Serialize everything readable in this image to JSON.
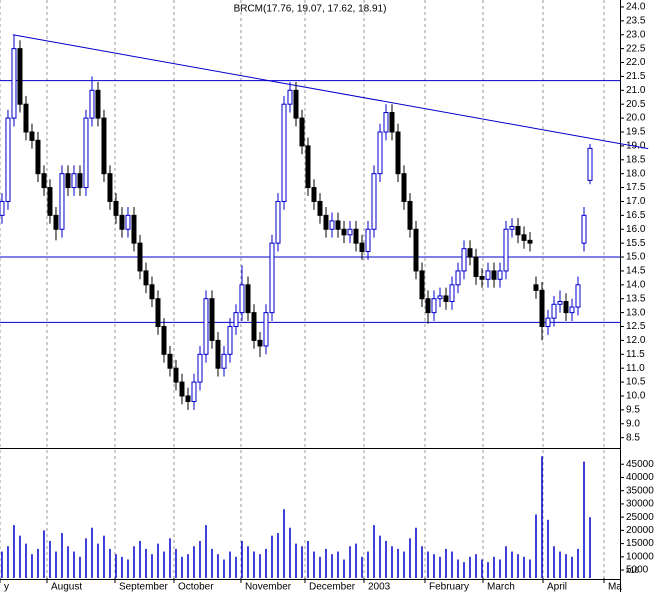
{
  "chart_data": {
    "type": "candlestick",
    "title": "BRCM(17.76, 19.07, 17.62, 18.91)",
    "open": [
      16.5,
      17,
      20,
      22.5,
      20.5,
      19.5,
      19.2,
      18,
      17.5,
      16.5,
      16,
      18,
      17.5,
      18,
      17.5,
      20,
      21,
      20,
      18,
      17,
      16.5,
      16,
      16.5,
      15.5,
      14.5,
      14,
      13.5,
      12.5,
      11.5,
      11,
      10.5,
      10,
      9.8,
      10.5,
      11.5,
      13.5,
      12,
      11,
      11.5,
      12.5,
      13,
      14,
      13,
      12,
      11.8,
      13,
      15.5,
      17,
      20.5,
      21,
      20,
      19,
      17.5,
      17,
      16.5,
      16,
      16.3,
      16,
      15.8,
      16,
      15.5,
      15.2,
      16,
      18,
      19.5,
      20.2,
      19.5,
      18,
      17,
      16,
      14.5,
      13.5,
      13,
      13.5,
      13.6,
      13.4,
      14,
      14.5,
      15.3,
      15,
      14.3,
      14.2,
      14.5,
      14.2,
      14.5,
      16,
      16.1,
      15.8,
      15.6,
      14,
      13.8,
      12.5,
      12.8,
      13.3,
      13.4,
      13,
      13.2,
      15.5,
      17.76
    ],
    "high": [
      17.3,
      20.3,
      23,
      22.8,
      20.8,
      19.8,
      19.5,
      18.3,
      17.8,
      16.8,
      18.3,
      18.3,
      18.3,
      18.3,
      20.3,
      21.5,
      21.3,
      20.3,
      18.3,
      17.3,
      16.8,
      16.8,
      16.8,
      15.8,
      14.8,
      14.3,
      13.8,
      12.8,
      11.8,
      11.3,
      10.8,
      10.3,
      10.8,
      11.8,
      13.8,
      13.8,
      12.3,
      11.8,
      12.8,
      13.3,
      14.7,
      14.3,
      13.3,
      12.3,
      13.3,
      15.8,
      17.3,
      20.8,
      21.3,
      21.3,
      20.3,
      19.3,
      17.8,
      17.3,
      16.8,
      16.6,
      16.6,
      16.3,
      16.3,
      16.3,
      15.8,
      16.3,
      18.3,
      19.8,
      20.5,
      20.5,
      19.8,
      18.3,
      17.3,
      16.3,
      14.8,
      13.8,
      13.8,
      13.9,
      13.9,
      14.3,
      14.8,
      15.6,
      15.6,
      15.3,
      14.6,
      14.8,
      14.8,
      14.8,
      16.3,
      16.4,
      16.4,
      16.1,
      15.9,
      14.3,
      14.1,
      13.1,
      13.6,
      13.8,
      13.7,
      13.5,
      14.3,
      16.8,
      19.07
    ],
    "low": [
      16.2,
      16.7,
      19.7,
      20.2,
      19.2,
      18.9,
      17.7,
      17.2,
      16.2,
      15.6,
      15.7,
      17.2,
      17.2,
      17.2,
      17.2,
      19.7,
      19.7,
      17.7,
      16.7,
      16.2,
      15.7,
      15.7,
      15.2,
      14.2,
      13.7,
      13.2,
      12.2,
      11.2,
      10.7,
      10.2,
      9.7,
      9.5,
      9.5,
      10.2,
      11.2,
      11.7,
      10.7,
      10.7,
      11.2,
      12.2,
      12.7,
      12.7,
      11.7,
      11.4,
      11.5,
      12.7,
      15.2,
      16.7,
      20.2,
      19.7,
      18.7,
      17.2,
      16.7,
      16.2,
      15.7,
      15.7,
      15.7,
      15.5,
      15.5,
      15.2,
      14.9,
      14.9,
      15.7,
      17.7,
      19.2,
      19.2,
      17.7,
      16.7,
      15.7,
      14.2,
      13.2,
      12.6,
      12.7,
      13.2,
      13.1,
      13.1,
      13.7,
      14.2,
      14.7,
      14,
      13.9,
      13.9,
      13.9,
      13.9,
      14.2,
      15.7,
      15.5,
      15.3,
      15.2,
      13.5,
      12,
      12.2,
      12.5,
      13,
      12.7,
      12.7,
      12.9,
      15.2,
      17.62
    ],
    "close": [
      17,
      20,
      22.5,
      20.5,
      19.5,
      19.2,
      18,
      17.5,
      16.5,
      16,
      18,
      17.5,
      18,
      17.5,
      20,
      21,
      20,
      18,
      17,
      16.5,
      16,
      16.5,
      15.5,
      14.5,
      14,
      13.5,
      12.5,
      11.5,
      11,
      10.5,
      10,
      9.8,
      10.5,
      11.5,
      13.5,
      12,
      11,
      11.5,
      12.5,
      13,
      14,
      13,
      12,
      11.8,
      13,
      15.5,
      17,
      20.5,
      21,
      20,
      19,
      17.5,
      17,
      16.5,
      16,
      16.3,
      16,
      15.8,
      16,
      15.5,
      15.2,
      16,
      18,
      19.5,
      20.2,
      19.5,
      18,
      17,
      16,
      14.5,
      13.5,
      13,
      13.5,
      13.6,
      13.4,
      14,
      14.5,
      15.3,
      15,
      14.3,
      14.2,
      14.5,
      14.2,
      14.5,
      16,
      16.1,
      15.8,
      15.6,
      15.5,
      13.8,
      12.5,
      12.8,
      13.3,
      13.4,
      13,
      13.2,
      14,
      16.5,
      18.91
    ],
    "volume": [
      12000,
      14000,
      22000,
      18000,
      15000,
      11000,
      13000,
      20000,
      16000,
      12000,
      19000,
      14000,
      12000,
      10000,
      17000,
      21000,
      15000,
      18000,
      13000,
      11000,
      10000,
      9000,
      14000,
      16000,
      13000,
      11000,
      15000,
      12000,
      17000,
      13000,
      10000,
      11000,
      14000,
      16000,
      22000,
      13000,
      11000,
      9000,
      12000,
      10000,
      16000,
      14000,
      12000,
      11000,
      13000,
      18000,
      19000,
      28000,
      21000,
      15000,
      14000,
      16000,
      12000,
      10000,
      13000,
      11000,
      12000,
      9000,
      14000,
      15000,
      10000,
      12000,
      22000,
      18000,
      16000,
      14000,
      13000,
      12000,
      17000,
      21000,
      14000,
      12000,
      11000,
      10000,
      13000,
      12000,
      9000,
      8000,
      10000,
      11000,
      9000,
      8000,
      10000,
      9000,
      14000,
      12000,
      11000,
      10000,
      9000,
      26000,
      48000,
      24000,
      14000,
      12000,
      11000,
      10000,
      13000,
      46000,
      25000
    ],
    "up_color": "#0000cc",
    "down_color": "#000000",
    "volume_color": "#0000cc",
    "line_color": "#0000cc",
    "xlim": [
      -0.33,
      103
    ],
    "xticks": [
      {
        "value": -0.33,
        "label": "y"
      },
      {
        "value": 7.5,
        "label": "August"
      },
      {
        "value": 18.83,
        "label": "September"
      },
      {
        "value": 28.67,
        "label": "October"
      },
      {
        "value": 39.83,
        "label": "November"
      },
      {
        "value": 50.5,
        "label": "December"
      },
      {
        "value": 60.33,
        "label": "2003"
      },
      {
        "value": 70.5,
        "label": "February"
      },
      {
        "value": 80.17,
        "label": "March"
      },
      {
        "value": 90.17,
        "label": "April"
      },
      {
        "value": 100.33,
        "label": "Ma"
      }
    ],
    "ylim": [
      8.2,
      24.25
    ],
    "yticks": [
      8.5,
      {
        "value": 9,
        "label": "9.0"
      },
      9.5,
      {
        "value": 10,
        "label": "10.0"
      },
      10.5,
      {
        "value": 11,
        "label": "11.0"
      },
      11.5,
      {
        "value": 12,
        "label": "12.0"
      },
      12.5,
      {
        "value": 13,
        "label": "13.0"
      },
      13.5,
      {
        "value": 14,
        "label": "14.0"
      },
      14.5,
      {
        "value": 15,
        "label": "15.0"
      },
      15.5,
      {
        "value": 16,
        "label": "16.0"
      },
      16.5,
      {
        "value": 17,
        "label": "17.0"
      },
      17.5,
      {
        "value": 18,
        "label": "18.0"
      },
      18.5,
      {
        "value": 19,
        "label": "19.0"
      },
      19.5,
      {
        "value": 20,
        "label": "20.0"
      },
      20.5,
      {
        "value": 21,
        "label": "21.0"
      },
      21.5,
      {
        "value": 22,
        "label": "22.0"
      },
      22.5,
      {
        "value": 23,
        "label": "23.0"
      },
      23.5,
      {
        "value": 24,
        "label": "24.0"
      }
    ],
    "hlines": [
      21.35,
      15,
      12.65
    ],
    "trendline": {
      "x": [
        1.8,
        107.7
      ],
      "y": [
        23,
        18.9
      ]
    },
    "volume_ylim": [
      2000,
      50000
    ],
    "volume_ticks": [
      5000,
      10000,
      15000,
      20000,
      25000,
      30000,
      35000,
      40000,
      45000
    ],
    "volume_unit": "x10",
    "grid": true
  }
}
